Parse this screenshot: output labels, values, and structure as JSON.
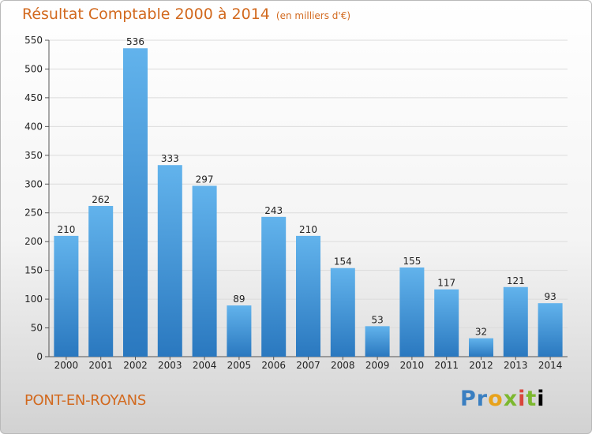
{
  "header": {
    "title": "Résultat Comptable 2000 à 2014",
    "subtitle": "(en milliers d'€)"
  },
  "footer": {
    "city": "PONT-EN-ROYANS",
    "logo": "Proxiti"
  },
  "colors": {
    "title": "#d2691e",
    "bar_light": "#62b3ec",
    "bar_dark": "#2a78bf"
  },
  "chart_data": {
    "type": "bar",
    "title": "Résultat Comptable 2000 à 2014",
    "subtitle": "(en milliers d'€)",
    "categories": [
      "2000",
      "2001",
      "2002",
      "2003",
      "2004",
      "2005",
      "2006",
      "2007",
      "2008",
      "2009",
      "2010",
      "2011",
      "2012",
      "2013",
      "2014"
    ],
    "values": [
      210,
      262,
      536,
      333,
      297,
      89,
      243,
      210,
      154,
      53,
      155,
      117,
      32,
      121,
      93
    ],
    "ylim": [
      0,
      550
    ],
    "yticks": [
      0,
      50,
      100,
      150,
      200,
      250,
      300,
      350,
      400,
      450,
      500,
      550
    ],
    "grid": true,
    "xlabel": "",
    "ylabel": ""
  }
}
